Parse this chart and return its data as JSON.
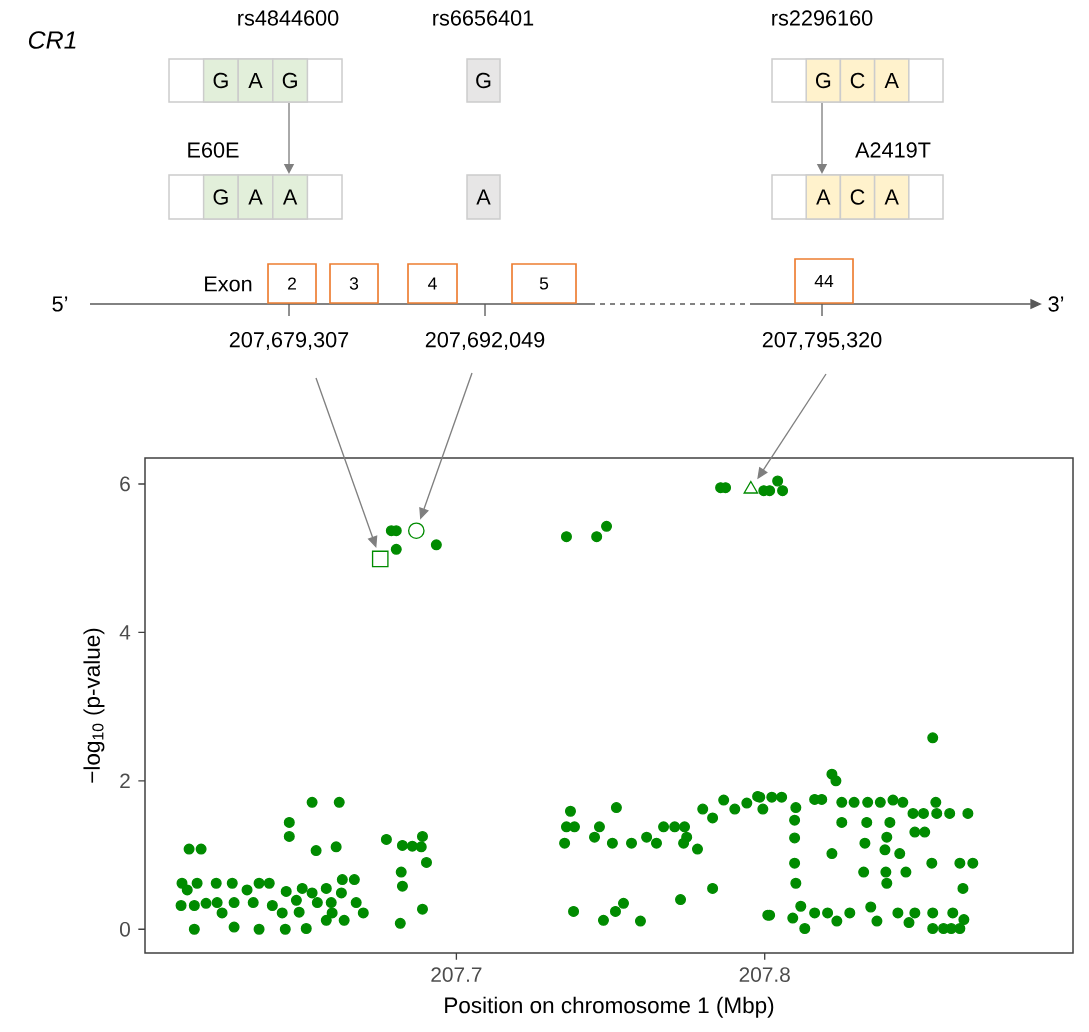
{
  "chart_data": {
    "type": "scatter",
    "xlabel": "Position on chromosome 1 (Mbp)",
    "ylabel": "−log$_{10}$ (p-value)",
    "xlim": [
      207.599,
      207.9
    ],
    "ylim": [
      -0.32,
      6.35
    ],
    "xticks": [
      207.7,
      207.8
    ],
    "yticks": [
      0,
      2,
      4,
      6
    ],
    "grid": false,
    "series": [
      {
        "color": "#008b00",
        "marker": "circle",
        "x": [
          207.6133,
          207.6172,
          207.611,
          207.6159,
          207.6221,
          207.6273,
          207.636,
          207.6393,
          207.6127,
          207.6321,
          207.6107,
          207.615,
          207.6188,
          207.6224,
          207.624,
          207.6279,
          207.6341,
          207.615,
          207.6279,
          207.636,
          207.6445,
          207.6513,
          207.6458,
          207.6458,
          207.6532,
          207.662,
          207.6545,
          207.661,
          207.6403,
          207.6448,
          207.6435,
          207.6481,
          207.65,
          207.6532,
          207.6549,
          207.649,
          207.6578,
          207.6594,
          207.6578,
          207.6597,
          207.663,
          207.6669,
          207.6627,
          207.6636,
          207.6675,
          207.6698,
          207.6773,
          207.6825,
          207.6857,
          207.689,
          207.6886,
          207.6903,
          207.6821,
          207.6825,
          207.689,
          207.6818,
          207.6789,
          207.6805,
          207.6805,
          207.6935,
          207.7357,
          207.7455,
          207.7487,
          207.7857,
          207.7873,
          207.7997,
          207.8016,
          207.8058,
          207.8042,
          207.7351,
          207.7357,
          207.7383,
          207.737,
          207.738,
          207.7448,
          207.7464,
          207.7506,
          207.7519,
          207.7568,
          207.7617,
          207.7649,
          207.7672,
          207.7708,
          207.774,
          207.7747,
          207.7737,
          207.7782,
          207.7477,
          207.7516,
          207.7542,
          207.7597,
          207.7727,
          207.7831,
          207.7799,
          207.7831,
          207.7867,
          207.7903,
          207.7942,
          207.7977,
          207.7994,
          207.801,
          207.7984,
          207.8023,
          207.8055,
          207.8101,
          207.8097,
          207.8097,
          207.8097,
          207.8101,
          207.8016,
          207.8117,
          207.8091,
          207.813,
          207.8162,
          207.8204,
          207.8234,
          207.8276,
          207.8344,
          207.8364,
          207.8432,
          207.8487,
          207.8468,
          207.8545,
          207.8545,
          207.8633,
          207.861,
          207.8646,
          207.8218,
          207.8231,
          207.8162,
          207.825,
          207.8334,
          207.8416,
          207.8448,
          207.8481,
          207.8555,
          207.8558,
          207.8659,
          207.8545,
          207.825,
          207.8331,
          207.8406,
          207.8396,
          207.839,
          207.8487,
          207.8519,
          207.8325,
          207.8218,
          207.8438,
          207.8321,
          207.8393,
          207.8396,
          207.8458,
          207.8542,
          207.8633,
          207.8675,
          207.8643,
          207.8185,
          207.829,
          207.8375,
          207.8515,
          207.86,
          207.858,
          207.8605
        ],
        "values": [
          1.08,
          1.08,
          0.62,
          0.62,
          0.62,
          0.62,
          0.62,
          0.62,
          0.53,
          0.53,
          0.32,
          0.32,
          0.35,
          0.36,
          0.22,
          0.36,
          0.36,
          0.0,
          0.03,
          0.0,
          0.0,
          0.01,
          1.44,
          1.25,
          1.71,
          1.71,
          1.06,
          1.11,
          0.32,
          0.51,
          0.22,
          0.39,
          0.55,
          0.49,
          0.36,
          0.23,
          0.55,
          0.36,
          0.12,
          0.22,
          0.67,
          0.67,
          0.49,
          0.12,
          0.36,
          0.22,
          1.21,
          1.13,
          1.12,
          1.25,
          1.11,
          0.9,
          0.77,
          0.58,
          0.27,
          0.08,
          5.37,
          5.37,
          5.12,
          5.18,
          5.29,
          5.29,
          5.43,
          5.95,
          5.95,
          5.91,
          5.91,
          5.91,
          6.04,
          1.16,
          1.38,
          1.38,
          1.59,
          0.24,
          1.24,
          1.38,
          1.16,
          1.64,
          1.16,
          1.24,
          1.16,
          1.38,
          1.38,
          1.38,
          1.24,
          1.16,
          1.08,
          0.12,
          0.24,
          0.35,
          0.11,
          0.4,
          0.55,
          1.62,
          1.5,
          1.74,
          1.62,
          1.7,
          1.79,
          1.62,
          0.19,
          1.78,
          1.78,
          1.78,
          1.64,
          1.47,
          1.23,
          0.89,
          0.62,
          0.19,
          0.31,
          0.15,
          0.01,
          0.22,
          0.22,
          0.11,
          0.22,
          0.3,
          0.11,
          0.22,
          0.22,
          0.09,
          0.22,
          0.01,
          0.01,
          0.22,
          0.13,
          2.09,
          2.0,
          1.75,
          1.71,
          1.71,
          1.74,
          1.71,
          1.56,
          1.71,
          1.56,
          1.56,
          2.58,
          1.44,
          1.44,
          1.44,
          1.24,
          1.07,
          1.31,
          1.31,
          1.16,
          1.02,
          1.02,
          0.77,
          0.77,
          0.62,
          0.77,
          0.89,
          0.89,
          0.89,
          0.55,
          1.75,
          1.71,
          1.71,
          1.56,
          1.56,
          0.01,
          0.01
        ]
      },
      {
        "color": "#008b00",
        "marker": "square",
        "x": [
          207.6753
        ],
        "values": [
          4.99
        ]
      },
      {
        "color": "#008b00",
        "marker": "circle",
        "x": [
          207.687
        ],
        "values": [
          5.37
        ]
      },
      {
        "color": "#008b00",
        "marker": "triangle",
        "x": [
          207.7955
        ],
        "values": [
          5.93
        ]
      }
    ],
    "annotations": [
      "CR1",
      "rs4844600",
      "rs6656401",
      "rs2296160",
      "E60E",
      "A2419T",
      "Exon",
      "5’",
      "3’",
      "2",
      "3",
      "4",
      "5",
      "44",
      "G",
      "A",
      "G",
      "G",
      "A",
      "A",
      "G",
      "A",
      "G",
      "C",
      "A",
      "A",
      "C",
      "A",
      "207,679,307",
      "207,692,049",
      "207,795,320"
    ]
  }
}
